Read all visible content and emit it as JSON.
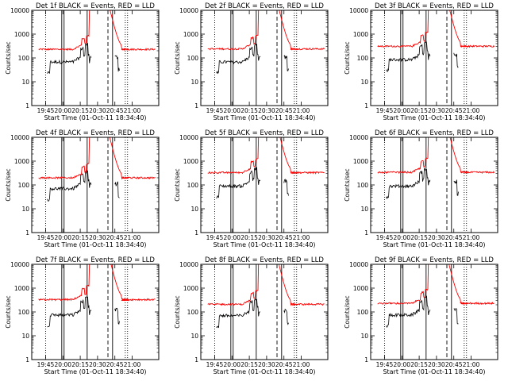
{
  "chart_data": {
    "type": "line",
    "shared": {
      "xlabel": "Start Time (01-Oct-11 18:34:40)",
      "ylabel": "Counts/sec",
      "x_tick_labels": [
        "19:45",
        "20:00",
        "20:15",
        "20:30",
        "20:45",
        "21:00"
      ],
      "x_tick_values_min": [
        0,
        15,
        30,
        45,
        60,
        75
      ],
      "xlim_min": [
        -12,
        98
      ],
      "y_scale": "log",
      "ylim": [
        1,
        10000
      ],
      "y_tick_labels": [
        "1",
        "10",
        "100",
        "1000",
        "10000"
      ],
      "y_tick_values": [
        1,
        10,
        100,
        1000,
        10000
      ],
      "vertical_lines": [
        {
          "x_min": 0,
          "style": "dotted"
        },
        {
          "x_min": 14,
          "style": "solid"
        },
        {
          "x_min": 16,
          "style": "solid"
        },
        {
          "x_min": 36,
          "style": "solid"
        },
        {
          "x_min": 54,
          "style": "dashed"
        },
        {
          "x_min": 58,
          "style": "solid"
        },
        {
          "x_min": 69,
          "style": "dotted"
        },
        {
          "x_min": 71,
          "style": "dotted"
        }
      ],
      "colors": {
        "events": "#000000",
        "lld": "#ff0000"
      }
    },
    "panels": [
      {
        "title": "Det 1f BLACK = Events, RED = LLD",
        "events_base": 68,
        "lld_base": 230
      },
      {
        "title": "Det 2f BLACK = Events, RED = LLD",
        "events_base": 68,
        "lld_base": 240
      },
      {
        "title": "Det 3f BLACK = Events, RED = LLD",
        "events_base": 85,
        "lld_base": 310
      },
      {
        "title": "Det 4f BLACK = Events, RED = LLD",
        "events_base": 70,
        "lld_base": 200
      },
      {
        "title": "Det 5f BLACK = Events, RED = LLD",
        "events_base": 90,
        "lld_base": 330
      },
      {
        "title": "Det 6f BLACK = Events, RED = LLD",
        "events_base": 90,
        "lld_base": 340
      },
      {
        "title": "Det 7f BLACK = Events, RED = LLD",
        "events_base": 75,
        "lld_base": 330
      },
      {
        "title": "Det 8f BLACK = Events, RED = LLD",
        "events_base": 70,
        "lld_base": 210
      },
      {
        "title": "Det 9f BLACK = Events, RED = LLD",
        "events_base": 75,
        "lld_base": 230
      }
    ]
  }
}
